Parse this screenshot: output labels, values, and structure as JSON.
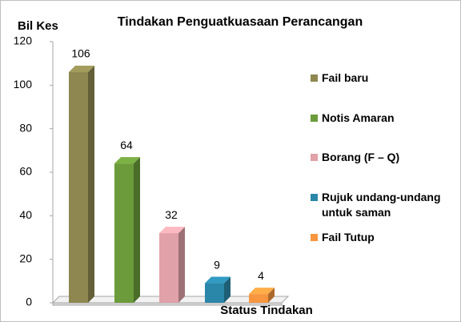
{
  "chart_data": {
    "type": "bar3d",
    "title": "Tindakan Penguatkuasaan Perancangan",
    "y_label": "Bil Kes",
    "x_label": "Status Tindakan",
    "categories": [
      "Fail baru",
      "Notis Amaran",
      "Borang (F – Q)",
      "Rujuk undang-undang untuk saman",
      "Fail Tutup"
    ],
    "values": [
      106,
      64,
      32,
      9,
      4
    ],
    "colors": [
      "#8e8850",
      "#6b9b3a",
      "#e0a1a8",
      "#2b87a9",
      "#f7963f"
    ],
    "ylim": [
      0,
      120
    ],
    "yticks": [
      0,
      20,
      40,
      60,
      80,
      100,
      120
    ],
    "legend": "right"
  }
}
